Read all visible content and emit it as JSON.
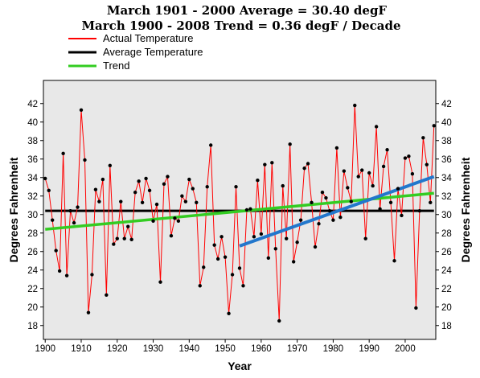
{
  "chart_data": {
    "type": "line",
    "title": "March 1901 - 2000 Average = 30.40 degF",
    "subtitle": "March 1900 - 2008 Trend = 0.36 degF / Decade",
    "xlabel": "Year",
    "ylabel": "Degrees Fahrenheit",
    "xlim": [
      1899.5,
      2008.5
    ],
    "ylim": [
      16.5,
      44.5
    ],
    "x_ticks": [
      1900,
      1910,
      1920,
      1930,
      1940,
      1950,
      1960,
      1970,
      1980,
      1990,
      2000
    ],
    "y_ticks": [
      18,
      20,
      22,
      24,
      26,
      28,
      30,
      32,
      34,
      36,
      38,
      40,
      42
    ],
    "grid": false,
    "legend_position": "top-left",
    "colors": {
      "actual": "#ff0000",
      "points": "#000000",
      "average": "#000000",
      "trend": "#33cc22",
      "recent_trend": "#2277cc",
      "plot_background": "#e8e8e8"
    },
    "series": [
      {
        "name": "Actual Temperature",
        "x": [
          1900,
          1901,
          1902,
          1903,
          1904,
          1905,
          1906,
          1907,
          1908,
          1909,
          1910,
          1911,
          1912,
          1913,
          1914,
          1915,
          1916,
          1917,
          1918,
          1919,
          1920,
          1921,
          1922,
          1923,
          1924,
          1925,
          1926,
          1927,
          1928,
          1929,
          1930,
          1931,
          1932,
          1933,
          1934,
          1935,
          1936,
          1937,
          1938,
          1939,
          1940,
          1941,
          1942,
          1943,
          1944,
          1945,
          1946,
          1947,
          1948,
          1949,
          1950,
          1951,
          1952,
          1953,
          1954,
          1955,
          1956,
          1957,
          1958,
          1959,
          1960,
          1961,
          1962,
          1963,
          1964,
          1965,
          1966,
          1967,
          1968,
          1969,
          1970,
          1971,
          1972,
          1973,
          1974,
          1975,
          1976,
          1977,
          1978,
          1979,
          1980,
          1981,
          1982,
          1983,
          1984,
          1985,
          1986,
          1987,
          1988,
          1989,
          1990,
          1991,
          1992,
          1993,
          1994,
          1995,
          1996,
          1997,
          1998,
          1999,
          2000,
          2001,
          2002,
          2003,
          2004,
          2005,
          2006,
          2007,
          2008
        ],
        "values": [
          33.9,
          32.6,
          29.4,
          26.1,
          23.9,
          36.6,
          23.4,
          30.4,
          29.1,
          30.8,
          41.3,
          35.9,
          19.4,
          23.5,
          32.7,
          31.4,
          33.8,
          21.3,
          35.3,
          26.8,
          27.4,
          31.4,
          27.4,
          28.7,
          27.3,
          32.4,
          33.6,
          31.3,
          33.9,
          32.6,
          29.3,
          31.1,
          22.7,
          33.3,
          34.1,
          27.7,
          29.6,
          29.3,
          32.0,
          31.4,
          33.8,
          32.8,
          31.3,
          22.3,
          24.3,
          33.0,
          37.5,
          26.7,
          25.2,
          27.6,
          25.4,
          19.3,
          23.5,
          33.0,
          24.2,
          22.3,
          30.5,
          30.6,
          27.6,
          33.7,
          27.9,
          35.4,
          25.3,
          35.6,
          26.3,
          18.5,
          33.1,
          27.4,
          37.6,
          24.9,
          27.0,
          29.4,
          35.0,
          35.5,
          31.3,
          26.5,
          29.0,
          32.4,
          31.8,
          30.4,
          29.4,
          37.2,
          29.7,
          34.7,
          32.9,
          31.4,
          41.8,
          34.1,
          34.8,
          27.4,
          34.5,
          33.1,
          39.5,
          30.6,
          35.2,
          37.0,
          31.3,
          25.0,
          32.8,
          29.9,
          36.1,
          36.3,
          34.4,
          19.9,
          30.4,
          38.3,
          35.4,
          31.3,
          39.6
        ]
      },
      {
        "name": "Average Temperature",
        "x": [
          1900,
          2008
        ],
        "values": [
          30.4,
          30.4
        ]
      },
      {
        "name": "Trend",
        "x": [
          1900,
          2008
        ],
        "values": [
          28.4,
          32.3
        ]
      },
      {
        "x": [
          1954,
          2008
        ],
        "values": [
          26.6,
          34.1
        ]
      }
    ]
  }
}
